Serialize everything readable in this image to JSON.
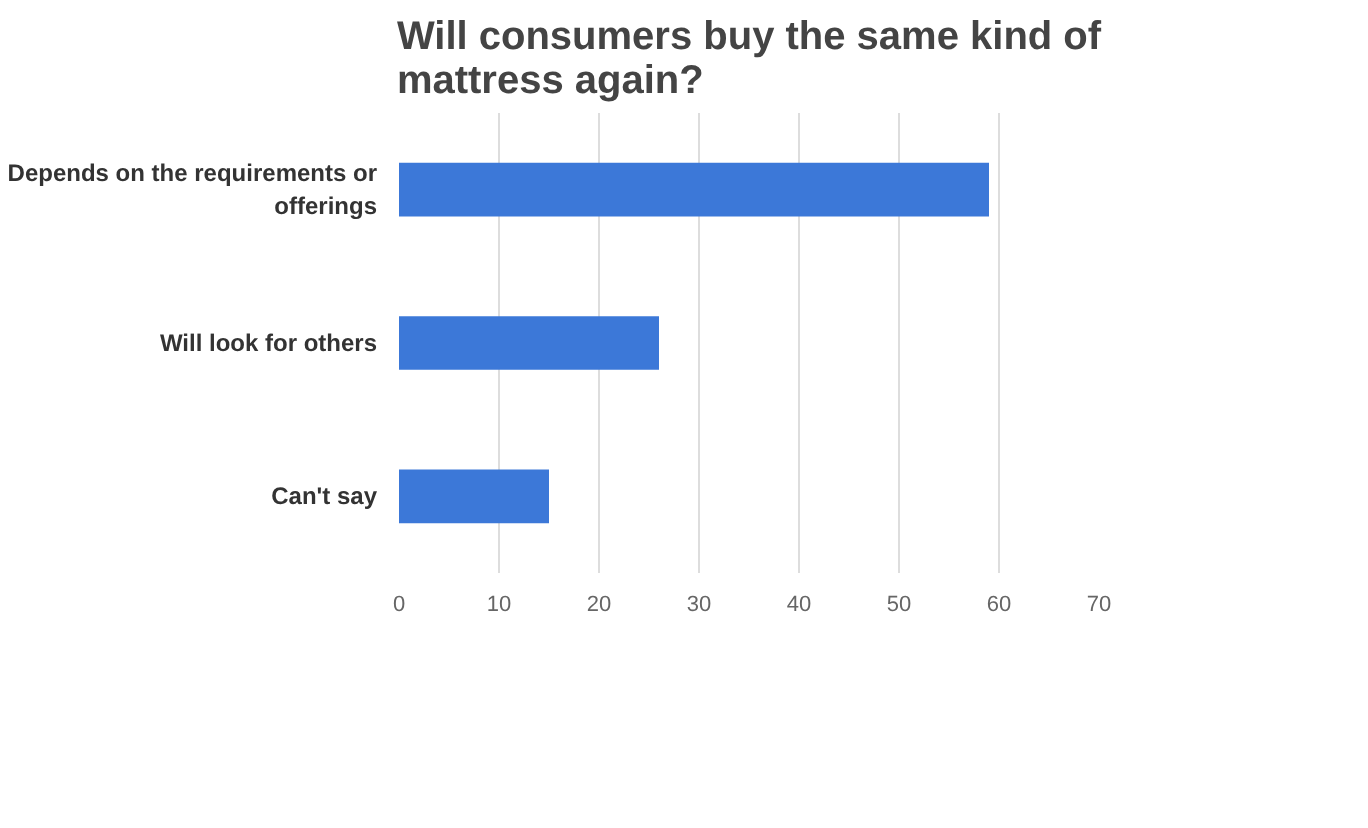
{
  "chart_data": {
    "type": "bar",
    "orientation": "horizontal",
    "title": "Will consumers buy the same kind of\nmattress again?",
    "categories": [
      "Depends on the requirements or\nofferings",
      "Will look for others",
      "Can't say"
    ],
    "series": [
      {
        "color": "#3c78d8",
        "values": [
          59,
          26,
          15
        ]
      }
    ],
    "xlim": [
      0,
      70
    ],
    "xticks": [
      0,
      10,
      20,
      30,
      40,
      50,
      60,
      70
    ],
    "grid": "x"
  }
}
